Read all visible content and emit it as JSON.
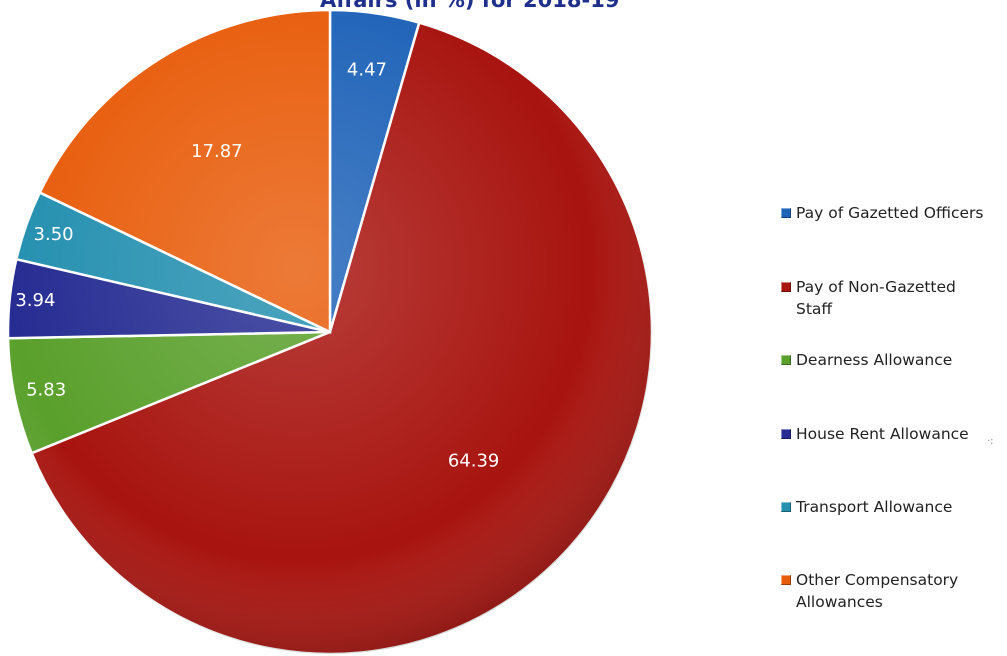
{
  "chart_data": {
    "type": "pie",
    "title": "Affairs (in %) for 2018-19",
    "categories": [
      "Pay of Gazetted Officers",
      "Pay of Non-Gazetted Staff",
      "Dearness Allowance",
      "House Rent Allowance",
      "Transport Allowance",
      "Other Compensatory Allowances"
    ],
    "values": [
      4.47,
      64.39,
      5.83,
      3.94,
      3.5,
      17.87
    ],
    "value_labels": [
      "4.47",
      "64.39",
      "5.83",
      "3.94",
      "3.50",
      "17.87"
    ],
    "colors": [
      "#1f63b8",
      "#a8140f",
      "#5aa02c",
      "#262c92",
      "#2590b0",
      "#e85d0c"
    ],
    "start_angle_deg": 0,
    "direction": "clockwise",
    "legend_position": "right"
  }
}
